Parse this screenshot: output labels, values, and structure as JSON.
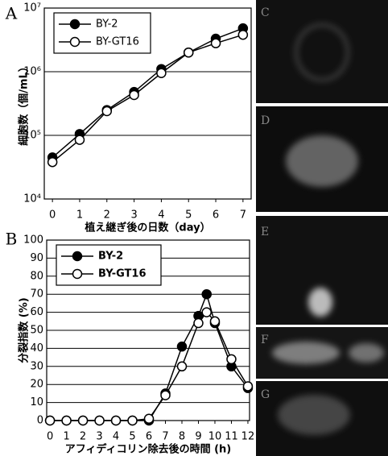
{
  "chart_data": [
    {
      "type": "line",
      "panel": "A",
      "ylabel": "細胞数（個/mL）",
      "xlabel": "植え継ぎ後の日数（day）",
      "x": [
        0,
        1,
        2,
        3,
        4,
        5,
        6,
        7
      ],
      "xlim": [
        -0.3,
        7.3
      ],
      "xticks": [
        0,
        1,
        2,
        3,
        4,
        5,
        6,
        7
      ],
      "ylog": true,
      "ylim": [
        10000,
        10000000
      ],
      "yticks": [
        {
          "value": 10000,
          "label": "10⁴"
        },
        {
          "value": 100000,
          "label": "10⁵"
        },
        {
          "value": 1000000,
          "label": "10⁶"
        },
        {
          "value": 10000000,
          "label": "10⁷"
        }
      ],
      "grid": true,
      "legend": "upper left",
      "series": [
        {
          "name": "BY-2",
          "color": "#000000",
          "marker": "filled",
          "values": [
            45000,
            105000,
            250000,
            480000,
            1100000,
            2000000,
            3300000,
            4800000
          ]
        },
        {
          "name": "BY-GT16",
          "color": "#000000",
          "marker": "open",
          "values": [
            38000,
            85000,
            240000,
            430000,
            950000,
            2000000,
            2800000,
            3800000
          ]
        }
      ]
    },
    {
      "type": "line",
      "panel": "B",
      "ylabel": "分裂指数 (%)",
      "xlabel": "アフィディコリン除去後の時間 (h)",
      "x": [
        0,
        1,
        2,
        3,
        4,
        5,
        6,
        7,
        8,
        9,
        9.5,
        10,
        11,
        12
      ],
      "xlim": [
        -0.2,
        12.1
      ],
      "xticks": [
        0,
        1,
        2,
        3,
        4,
        5,
        6,
        7,
        8,
        9,
        10,
        11,
        12
      ],
      "ylog": false,
      "ylim": [
        0,
        100
      ],
      "yticks": [
        0,
        10,
        20,
        30,
        40,
        50,
        60,
        70,
        80,
        90,
        100
      ],
      "grid": true,
      "legend": "upper left",
      "series": [
        {
          "name": "BY-2",
          "color": "#000000",
          "marker": "filled",
          "values": [
            0,
            0,
            0,
            0,
            0,
            0,
            0,
            15,
            41,
            58,
            70,
            54,
            30,
            18
          ]
        },
        {
          "name": "BY-GT16",
          "color": "#000000",
          "marker": "open",
          "values": [
            0,
            0,
            0,
            0,
            0,
            0,
            1,
            14,
            30,
            54,
            60,
            55,
            34,
            19
          ]
        }
      ]
    }
  ],
  "images": {
    "labels": [
      "C",
      "D",
      "E",
      "F",
      "G"
    ]
  }
}
